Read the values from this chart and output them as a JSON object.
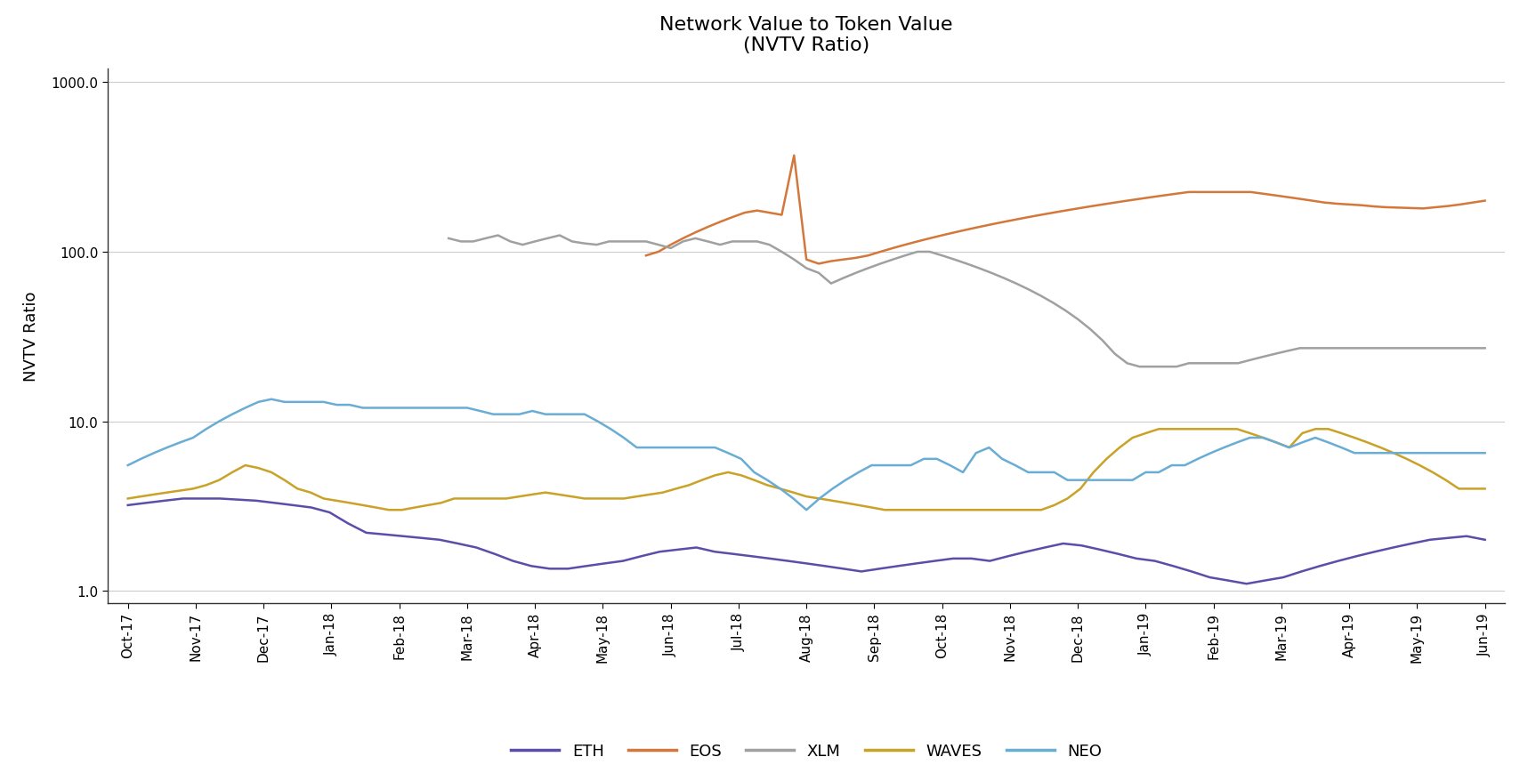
{
  "title": "Network Value to Token Value\n(NVTV Ratio)",
  "ylabel": "NVTV Ratio",
  "colors": {
    "ETH": "#5b4ea8",
    "EOS": "#d4773a",
    "XLM": "#a0a0a0",
    "WAVES": "#c9a227",
    "NEO": "#6aadd4"
  },
  "x_labels": [
    "Oct-17",
    "Nov-17",
    "Dec-17",
    "Jan-18",
    "Feb-18",
    "Mar-18",
    "Apr-18",
    "May-18",
    "Jun-18",
    "Jul-18",
    "Aug-18",
    "Sep-18",
    "Oct-18",
    "Nov-18",
    "Dec-18",
    "Jan-19",
    "Feb-19",
    "Mar-19",
    "Apr-19",
    "May-19",
    "Jun-19"
  ],
  "ETH": [
    3.2,
    3.3,
    3.4,
    3.5,
    3.5,
    3.5,
    3.45,
    3.4,
    3.3,
    3.2,
    3.1,
    2.9,
    2.5,
    2.2,
    2.15,
    2.1,
    2.05,
    2.0,
    1.9,
    1.8,
    1.65,
    1.5,
    1.4,
    1.35,
    1.35,
    1.4,
    1.45,
    1.5,
    1.6,
    1.7,
    1.75,
    1.8,
    1.7,
    1.65,
    1.6,
    1.55,
    1.5,
    1.45,
    1.4,
    1.35,
    1.3,
    1.35,
    1.4,
    1.45,
    1.5,
    1.55,
    1.55,
    1.5,
    1.6,
    1.7,
    1.8,
    1.9,
    1.85,
    1.75,
    1.65,
    1.55,
    1.5,
    1.4,
    1.3,
    1.2,
    1.15,
    1.1,
    1.15,
    1.2,
    1.3,
    1.4,
    1.5,
    1.6,
    1.7,
    1.8,
    1.9,
    2.0,
    2.05,
    2.1,
    2.0
  ],
  "EOS": [
    null,
    null,
    null,
    null,
    null,
    null,
    null,
    null,
    null,
    null,
    null,
    null,
    null,
    null,
    null,
    null,
    null,
    null,
    null,
    null,
    null,
    null,
    null,
    null,
    null,
    null,
    null,
    null,
    null,
    null,
    null,
    null,
    null,
    null,
    null,
    null,
    null,
    null,
    null,
    null,
    null,
    null,
    95,
    100,
    110,
    120,
    130,
    140,
    150,
    160,
    170,
    175,
    170,
    165,
    370,
    90,
    85,
    88,
    90,
    92,
    95,
    100,
    105,
    110,
    115,
    120,
    125,
    130,
    135,
    140,
    145,
    150,
    155,
    160,
    165,
    170,
    175,
    180,
    185,
    190,
    195,
    200,
    205,
    210,
    215,
    220,
    225,
    225,
    225,
    225,
    225,
    225,
    220,
    215,
    210,
    205,
    200,
    195,
    192,
    190,
    188,
    185,
    183,
    182,
    181,
    180,
    183,
    186,
    190,
    195,
    200
  ],
  "XLM": [
    null,
    null,
    null,
    null,
    null,
    null,
    null,
    null,
    null,
    null,
    null,
    null,
    null,
    null,
    null,
    null,
    null,
    null,
    null,
    null,
    null,
    null,
    null,
    null,
    null,
    null,
    120,
    115,
    115,
    120,
    125,
    115,
    110,
    115,
    120,
    125,
    115,
    112,
    110,
    115,
    115,
    115,
    115,
    110,
    105,
    115,
    120,
    115,
    110,
    115,
    115,
    115,
    110,
    100,
    90,
    80,
    75,
    65,
    70,
    75,
    80,
    85,
    90,
    95,
    100,
    100,
    95,
    90,
    85,
    80,
    75,
    70,
    65,
    60,
    55,
    50,
    45,
    40,
    35,
    30,
    25,
    22,
    21,
    21,
    21,
    21,
    22,
    22,
    22,
    22,
    22,
    23,
    24,
    25,
    26,
    27,
    27,
    27,
    27,
    27,
    27,
    27,
    27,
    27,
    27,
    27,
    27,
    27,
    27,
    27,
    27
  ],
  "WAVES": [
    3.5,
    3.6,
    3.7,
    3.8,
    3.9,
    4.0,
    4.2,
    4.5,
    5.0,
    5.5,
    5.3,
    5.0,
    4.5,
    4.0,
    3.8,
    3.5,
    3.4,
    3.3,
    3.2,
    3.1,
    3.0,
    3.0,
    3.1,
    3.2,
    3.3,
    3.5,
    3.5,
    3.5,
    3.5,
    3.5,
    3.6,
    3.7,
    3.8,
    3.7,
    3.6,
    3.5,
    3.5,
    3.5,
    3.5,
    3.6,
    3.7,
    3.8,
    4.0,
    4.2,
    4.5,
    4.8,
    5.0,
    4.8,
    4.5,
    4.2,
    4.0,
    3.8,
    3.6,
    3.5,
    3.4,
    3.3,
    3.2,
    3.1,
    3.0,
    3.0,
    3.0,
    3.0,
    3.0,
    3.0,
    3.0,
    3.0,
    3.0,
    3.0,
    3.0,
    3.0,
    3.0,
    3.2,
    3.5,
    4.0,
    5.0,
    6.0,
    7.0,
    8.0,
    8.5,
    9.0,
    9.0,
    9.0,
    9.0,
    9.0,
    9.0,
    9.0,
    8.5,
    8.0,
    7.5,
    7.0,
    8.5,
    9.0,
    9.0,
    8.5,
    8.0,
    7.5,
    7.0,
    6.5,
    6.0,
    5.5,
    5.0,
    4.5,
    4.0,
    4.0,
    4.0
  ],
  "NEO": [
    5.5,
    6.0,
    6.5,
    7.0,
    7.5,
    8.0,
    9.0,
    10.0,
    11.0,
    12.0,
    13.0,
    13.5,
    13.0,
    13.0,
    13.0,
    13.0,
    12.5,
    12.5,
    12.0,
    12.0,
    12.0,
    12.0,
    12.0,
    12.0,
    12.0,
    12.0,
    12.0,
    11.5,
    11.0,
    11.0,
    11.0,
    11.5,
    11.0,
    11.0,
    11.0,
    11.0,
    10.0,
    9.0,
    8.0,
    7.0,
    7.0,
    7.0,
    7.0,
    7.0,
    7.0,
    7.0,
    6.5,
    6.0,
    5.0,
    4.5,
    4.0,
    3.5,
    3.0,
    3.5,
    4.0,
    4.5,
    5.0,
    5.5,
    5.5,
    5.5,
    5.5,
    6.0,
    6.0,
    5.5,
    5.0,
    6.5,
    7.0,
    6.0,
    5.5,
    5.0,
    5.0,
    5.0,
    4.5,
    4.5,
    4.5,
    4.5,
    4.5,
    4.5,
    5.0,
    5.0,
    5.5,
    5.5,
    6.0,
    6.5,
    7.0,
    7.5,
    8.0,
    8.0,
    7.5,
    7.0,
    7.5,
    8.0,
    7.5,
    7.0,
    6.5,
    6.5,
    6.5,
    6.5,
    6.5,
    6.5,
    6.5,
    6.5,
    6.5,
    6.5,
    6.5
  ]
}
